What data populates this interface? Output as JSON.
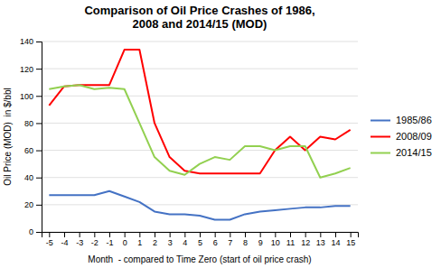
{
  "chart_data": {
    "type": "line",
    "title": "Comparison of Oil Price Crashes of 1986,\n2008 and 2014/15 (MOD)",
    "x_label": "Month  - compared to Time Zero (start of oil price crash)",
    "y_label": "Oil Price (MOD)  in $/bbl",
    "x": [
      -5,
      -4,
      -3,
      -2,
      -1,
      0,
      1,
      2,
      3,
      4,
      5,
      6,
      7,
      8,
      9,
      10,
      11,
      12,
      13,
      14,
      15
    ],
    "series": [
      {
        "name": "1985/86",
        "color": "#4472C4",
        "values": [
          27,
          27,
          27,
          27,
          30,
          26,
          22,
          15,
          13,
          13,
          12,
          9,
          9,
          13,
          15,
          16,
          17,
          18,
          18,
          19,
          19
        ]
      },
      {
        "name": "2008/09",
        "color": "#FF0000",
        "values": [
          93,
          107,
          108,
          108,
          108,
          134,
          134,
          80,
          55,
          45,
          43,
          43,
          43,
          43,
          43,
          60,
          70,
          60,
          70,
          68,
          75
        ]
      },
      {
        "name": "2014/15",
        "color": "#92D050",
        "values": [
          105,
          107,
          108,
          105,
          106,
          105,
          80,
          55,
          45,
          42,
          50,
          55,
          53,
          63,
          63,
          60,
          63,
          63,
          40,
          43,
          47
        ]
      }
    ],
    "xlim": [
      -5.5,
      15.5
    ],
    "xticks": [
      -5,
      -4,
      -3,
      -2,
      -1,
      0,
      1,
      2,
      3,
      4,
      5,
      6,
      7,
      8,
      9,
      10,
      11,
      12,
      13,
      14,
      15
    ],
    "ylim": [
      0,
      140
    ],
    "yticks": [
      0,
      20,
      40,
      60,
      80,
      100,
      120,
      140
    ],
    "grid": true,
    "legend": "right"
  }
}
